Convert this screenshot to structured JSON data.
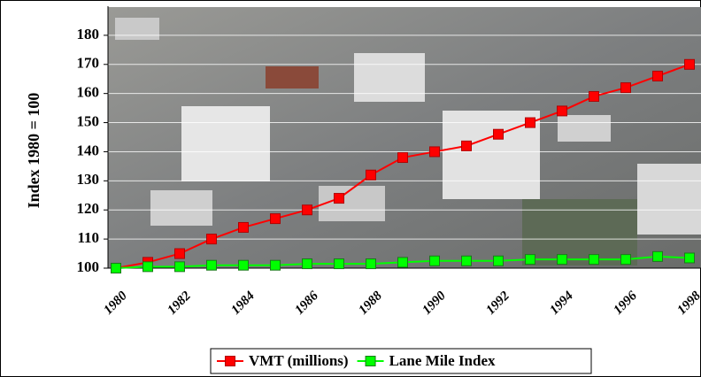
{
  "chart_data": {
    "type": "line",
    "y_label": "Index 1980 = 100",
    "categories": [
      "1980",
      null,
      "1982",
      null,
      "1984",
      null,
      "1986",
      null,
      "1988",
      null,
      "1990",
      null,
      "1992",
      null,
      "1994",
      null,
      "1996",
      null,
      "1998"
    ],
    "series": [
      {
        "name": "VMT (millions)",
        "color": "#ff0000",
        "values": [
          100,
          102,
          105,
          110,
          114,
          117,
          120,
          124,
          132,
          138,
          140,
          142,
          146,
          150,
          154,
          159,
          162,
          166,
          170
        ]
      },
      {
        "name": "Lane Mile Index",
        "color": "#00ff00",
        "values": [
          100,
          100.5,
          100.5,
          101,
          101,
          101,
          101.5,
          101.5,
          101.5,
          102,
          102.5,
          102.5,
          102.5,
          103,
          103,
          103,
          103,
          104,
          103.5
        ]
      }
    ],
    "ylim": [
      100,
      190
    ],
    "yticks": [
      100,
      110,
      120,
      130,
      140,
      150,
      160,
      170,
      180
    ],
    "grid": true
  }
}
